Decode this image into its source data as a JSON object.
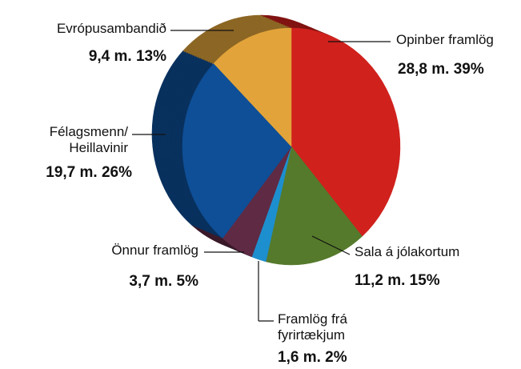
{
  "chart_data": {
    "type": "pie",
    "categories": [
      "Opinber framlög",
      "Sala á jólakortum",
      "Framlög frá fyrirtækjum",
      "Önnur framlög",
      "Félagsmenn/ Heillavinir",
      "Evrópusambandið"
    ],
    "values": [
      28.8,
      11.2,
      1.6,
      3.7,
      19.7,
      9.4
    ],
    "value_labels": [
      "28,8 m. 39%",
      "11,2 m. 15%",
      "1,6 m. 2%",
      "3,7 m. 5%",
      "19,7 m. 26%",
      "9,4 m. 13%"
    ],
    "colors": [
      "#d0211d",
      "#557a2b",
      "#1d8fcf",
      "#5f2a44",
      "#0e4f97",
      "#e2a43a"
    ]
  }
}
